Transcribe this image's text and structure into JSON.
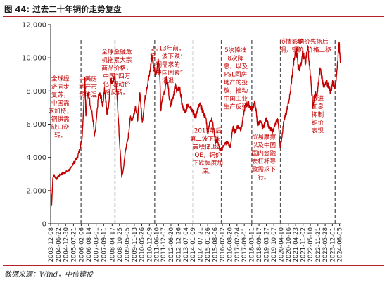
{
  "figure": {
    "title": "图 44: 过去二十年铜价走势复盘",
    "source": "数据来源：Wind，中信建投"
  },
  "colors": {
    "line": "#c00000",
    "annotation": "#c00000",
    "divider": "#555555",
    "axis": "#222222",
    "accent_rule": "#b8202a"
  },
  "chart_data": {
    "type": "line",
    "title": "",
    "xlabel": "",
    "ylabel": "",
    "ylim": [
      0,
      12000
    ],
    "y_ticks": [
      0,
      2000,
      4000,
      6000,
      8000,
      10000,
      12000
    ],
    "y_tick_labels": [
      "0",
      "2,000",
      "4,000",
      "6,000",
      "8,000",
      "10,000",
      "12,000"
    ],
    "x_range": [
      "2003-12-08",
      "2024-06-30"
    ],
    "x_tick_labels": [
      "2003-12-08",
      "2004-06-22",
      "2004-12-30",
      "2005-07-21",
      "2006-02-06",
      "2006-08-14",
      "2007-03-01",
      "2007-09-11",
      "2008-04-17",
      "2008-10-25",
      "2009-05-05",
      "2009-11-13",
      "2010-05-26",
      "2010-12-09",
      "2011-06-10",
      "2011-12-07",
      "2012-06-20",
      "2012-12-26",
      "2013-07-04",
      "2014-01-09",
      "2014-07-21",
      "2015-01-26",
      "2015-08-06",
      "2016-02-12",
      "2016-08-20",
      "2017-02-24",
      "2017-09-01",
      "2018-03-11",
      "2018-09-17",
      "2019-03-27",
      "2019-10-07",
      "2020-04-10",
      "2020-10-16",
      "2021-04-23",
      "2021-11-02",
      "2022-05-10",
      "2022-11-21",
      "2023-05-28",
      "2023-12-01",
      "2024-06-05"
    ],
    "grid": false,
    "legend": "none",
    "series": [
      {
        "values": [
          [
            "2003-12-08",
            2150
          ],
          [
            "2004-01-02",
            1100
          ],
          [
            "2004-02-01",
            2700
          ],
          [
            "2004-03-01",
            2950
          ],
          [
            "2004-05-01",
            2700
          ],
          [
            "2004-08-01",
            2950
          ],
          [
            "2004-11-01",
            3050
          ],
          [
            "2005-02-01",
            3150
          ],
          [
            "2005-05-01",
            3300
          ],
          [
            "2005-08-01",
            3700
          ],
          [
            "2005-11-01",
            4000
          ],
          [
            "2006-01-10",
            4600
          ],
          [
            "2006-03-01",
            5200
          ],
          [
            "2006-04-10",
            7000
          ],
          [
            "2006-05-11",
            8800
          ],
          [
            "2006-06-08",
            6500
          ],
          [
            "2006-07-15",
            7800
          ],
          [
            "2006-09-01",
            7600
          ],
          [
            "2006-12-01",
            6400
          ],
          [
            "2007-01-15",
            5300
          ],
          [
            "2007-02-15",
            5700
          ],
          [
            "2007-05-01",
            7800
          ],
          [
            "2007-07-01",
            7700
          ],
          [
            "2007-08-20",
            7100
          ],
          [
            "2007-10-01",
            8200
          ],
          [
            "2007-12-10",
            6600
          ],
          [
            "2008-01-25",
            7300
          ],
          [
            "2008-03-05",
            8600
          ],
          [
            "2008-04-20",
            8600
          ],
          [
            "2008-07-02",
            8900
          ],
          [
            "2008-09-01",
            7400
          ],
          [
            "2008-10-20",
            5200
          ],
          [
            "2008-12-24",
            2800
          ],
          [
            "2009-02-01",
            3250
          ],
          [
            "2009-04-01",
            4500
          ],
          [
            "2009-06-01",
            5100
          ],
          [
            "2009-08-01",
            6400
          ],
          [
            "2009-10-01",
            6300
          ],
          [
            "2009-12-15",
            7100
          ],
          [
            "2010-02-05",
            6200
          ],
          [
            "2010-04-07",
            7900
          ],
          [
            "2010-06-07",
            6100
          ],
          [
            "2010-08-02",
            7300
          ],
          [
            "2010-10-01",
            8200
          ],
          [
            "2010-12-06",
            8900
          ],
          [
            "2011-01-05",
            9400
          ],
          [
            "2011-02-14",
            10100
          ],
          [
            "2011-04-01",
            9500
          ],
          [
            "2011-06-01",
            9000
          ],
          [
            "2011-07-27",
            9900
          ],
          [
            "2011-09-01",
            9000
          ],
          [
            "2011-10-03",
            6800
          ],
          [
            "2011-11-05",
            7500
          ],
          [
            "2012-01-15",
            8100
          ],
          [
            "2012-02-15",
            8700
          ],
          [
            "2012-04-01",
            8400
          ],
          [
            "2012-06-01",
            7200
          ],
          [
            "2012-08-01",
            7500
          ],
          [
            "2012-10-01",
            8300
          ],
          [
            "2012-12-10",
            8000
          ],
          [
            "2013-02-01",
            8200
          ],
          [
            "2013-04-15",
            7000
          ],
          [
            "2013-06-25",
            6700
          ],
          [
            "2013-09-01",
            7200
          ],
          [
            "2013-12-01",
            7000
          ],
          [
            "2014-03-15",
            6400
          ],
          [
            "2014-05-01",
            6800
          ],
          [
            "2014-07-15",
            7200
          ],
          [
            "2014-10-01",
            6700
          ],
          [
            "2014-12-20",
            6300
          ],
          [
            "2015-01-26",
            5400
          ],
          [
            "2015-03-01",
            5900
          ],
          [
            "2015-05-10",
            6400
          ],
          [
            "2015-06-30",
            5700
          ],
          [
            "2015-08-25",
            4900
          ],
          [
            "2015-10-01",
            5200
          ],
          [
            "2015-11-23",
            4500
          ],
          [
            "2016-01-15",
            4400
          ],
          [
            "2016-04-01",
            4800
          ],
          [
            "2016-07-01",
            4900
          ],
          [
            "2016-09-01",
            4600
          ],
          [
            "2016-11-11",
            5800
          ],
          [
            "2017-01-15",
            5500
          ],
          [
            "2017-03-01",
            5900
          ],
          [
            "2017-06-15",
            5700
          ],
          [
            "2017-09-05",
            6900
          ],
          [
            "2017-10-16",
            7200
          ],
          [
            "2017-12-28",
            7200
          ],
          [
            "2018-03-10",
            6900
          ],
          [
            "2018-06-07",
            7300
          ],
          [
            "2018-08-15",
            5900
          ],
          [
            "2018-10-01",
            6200
          ],
          [
            "2019-01-03",
            5800
          ],
          [
            "2019-04-01",
            6400
          ],
          [
            "2019-06-01",
            5800
          ],
          [
            "2019-09-03",
            5550
          ],
          [
            "2019-12-20",
            6200
          ],
          [
            "2020-01-20",
            6300
          ],
          [
            "2020-03-23",
            4600
          ],
          [
            "2020-05-01",
            5200
          ],
          [
            "2020-07-01",
            6400
          ],
          [
            "2020-09-01",
            6700
          ],
          [
            "2020-12-01",
            7800
          ],
          [
            "2021-02-25",
            9600
          ],
          [
            "2021-05-10",
            10600
          ],
          [
            "2021-07-01",
            9400
          ],
          [
            "2021-09-01",
            9500
          ],
          [
            "2021-10-18",
            10400
          ],
          [
            "2022-01-01",
            9600
          ],
          [
            "2022-03-07",
            10700
          ],
          [
            "2022-05-01",
            9300
          ],
          [
            "2022-07-15",
            7000
          ],
          [
            "2022-09-01",
            7800
          ],
          [
            "2022-11-01",
            7700
          ],
          [
            "2023-01-18",
            9400
          ],
          [
            "2023-03-01",
            8900
          ],
          [
            "2023-05-01",
            8200
          ],
          [
            "2023-07-01",
            8500
          ],
          [
            "2023-09-01",
            8300
          ],
          [
            "2023-10-23",
            7900
          ],
          [
            "2023-12-01",
            8500
          ],
          [
            "2024-02-15",
            8300
          ],
          [
            "2024-04-01",
            9300
          ],
          [
            "2024-05-20",
            10900
          ],
          [
            "2024-06-30",
            9800
          ]
        ]
      }
    ],
    "dividers": [
      "2006-02-01",
      "2008-07-01",
      "2011-04-25",
      "2014-01-15",
      "2016-01-15",
      "2018-03-15",
      "2020-03-25",
      "2024-02-10"
    ],
    "annotations": [
      {
        "date": "2004-08-15",
        "y": 8620,
        "lines": [
          "全球经",
          "济同步",
          "复苏，",
          "中国需",
          "求加持，",
          "铜供需",
          "缺口逆",
          "转。"
        ]
      },
      {
        "date": "2006-08-01",
        "y": 8620,
        "lines": [
          "中美房",
          "地产市",
          "场降温"
        ]
      },
      {
        "date": "2008-08-15",
        "y": 10250,
        "lines": [
          "全球金融危",
          "机拖累大宗",
          "商品价格，",
          "中国“四万",
          "亿”驱动价",
          "格反转。"
        ]
      },
      {
        "date": "2012-04-01",
        "y": 10450,
        "lines": [
          "2013年前，",
          "第一波下跌：",
          "铜需求的",
          "“中国因素”",
          "消退"
        ]
      },
      {
        "date": "2015-02-01",
        "y": 5500,
        "lines": [
          "2013年后",
          "第二波下跌：",
          "美联储退出",
          "QE，铜价",
          "下跌幅度加",
          "深。"
        ]
      },
      {
        "date": "2017-01-20",
        "y": 10350,
        "lines": [
          "5次降准",
          "8次降",
          "息，以及",
          "PSL同房",
          "地产的投",
          "放，推动",
          "中国工业",
          "生产反弹"
        ]
      },
      {
        "date": "2019-01-20",
        "y": 5100,
        "lines": [
          "贸易摩擦",
          "以及中国",
          "国内金融",
          "去杠杆导",
          "致需求下",
          "行。"
        ]
      },
      {
        "date": "2021-01-15",
        "y": 10850,
        "lines": [
          "疫情影响",
          "铜，铜价"
        ]
      },
      {
        "date": "2022-07-20",
        "y": 10850,
        "lines": [
          "铜价先扬后",
          "抑，价格上移"
        ]
      },
      {
        "date": "2022-11-15",
        "y": 7450,
        "lines": [
          "激进",
          "加息",
          "抑制",
          "铜价",
          "表现"
        ]
      }
    ]
  }
}
